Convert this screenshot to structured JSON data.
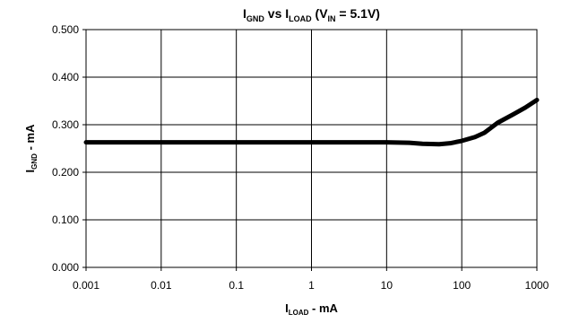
{
  "chart_data": {
    "type": "line",
    "title": {
      "parts": [
        {
          "text": "I",
          "sub": false
        },
        {
          "text": "GND",
          "sub": true
        },
        {
          "text": " vs I",
          "sub": false
        },
        {
          "text": "LOAD",
          "sub": true
        },
        {
          "text": " (V",
          "sub": false
        },
        {
          "text": "IN",
          "sub": true
        },
        {
          "text": " = 5.1V)",
          "sub": false
        }
      ]
    },
    "xlabel": {
      "parts": [
        {
          "text": "I",
          "sub": false
        },
        {
          "text": "LOAD",
          "sub": true
        },
        {
          "text": " - mA",
          "sub": false
        }
      ]
    },
    "ylabel": {
      "parts": [
        {
          "text": "I",
          "sub": false
        },
        {
          "text": "GND",
          "sub": true
        },
        {
          "text": " - mA",
          "sub": false
        }
      ]
    },
    "x_scale": "log",
    "xlim": [
      0.001,
      1000
    ],
    "ylim": [
      0,
      0.5
    ],
    "x_ticks": [
      {
        "value": 0.001,
        "label": "0.001"
      },
      {
        "value": 0.01,
        "label": "0.01"
      },
      {
        "value": 0.1,
        "label": "0.1"
      },
      {
        "value": 1,
        "label": "1"
      },
      {
        "value": 10,
        "label": "10"
      },
      {
        "value": 100,
        "label": "100"
      },
      {
        "value": 1000,
        "label": "1000"
      }
    ],
    "y_ticks": [
      {
        "value": 0,
        "label": "0.000"
      },
      {
        "value": 0.1,
        "label": "0.100"
      },
      {
        "value": 0.2,
        "label": "0.200"
      },
      {
        "value": 0.3,
        "label": "0.300"
      },
      {
        "value": 0.4,
        "label": "0.400"
      },
      {
        "value": 0.5,
        "label": "0.500"
      }
    ],
    "grid": true,
    "series": [
      {
        "color": "#000000",
        "x": [
          0.001,
          0.01,
          0.1,
          1,
          10,
          20,
          30,
          50,
          70,
          100,
          150,
          200,
          300,
          500,
          700,
          1000
        ],
        "y": [
          0.263,
          0.263,
          0.263,
          0.263,
          0.263,
          0.262,
          0.26,
          0.259,
          0.261,
          0.266,
          0.274,
          0.283,
          0.304,
          0.323,
          0.336,
          0.352
        ]
      }
    ]
  }
}
